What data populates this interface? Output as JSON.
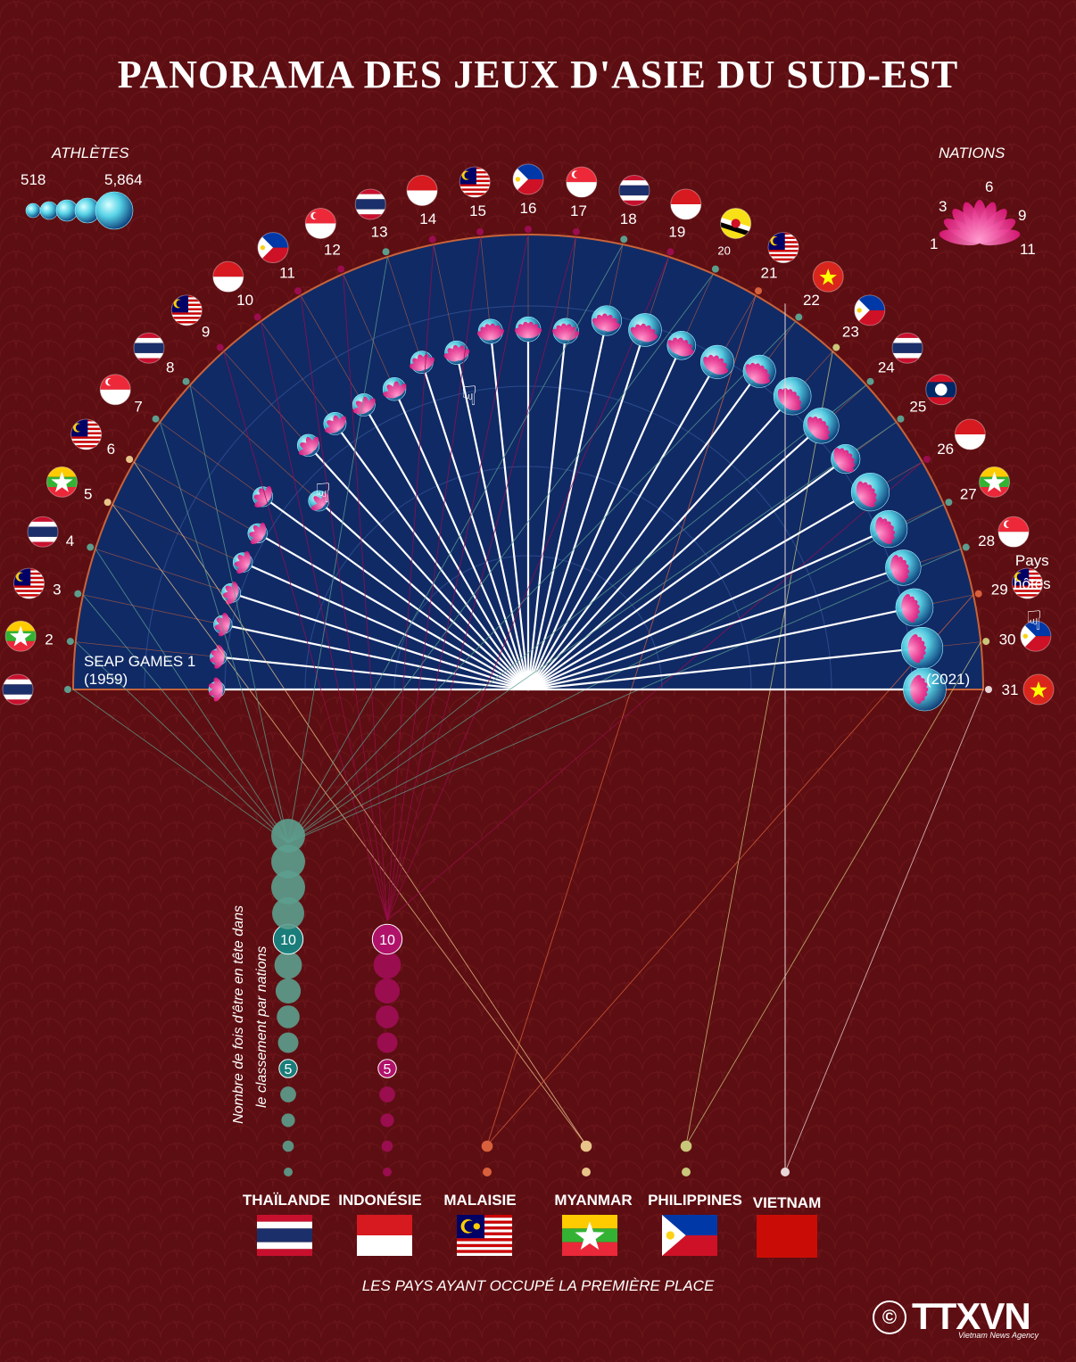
{
  "title": "PANORAMA DES JEUX D'ASIE DU SUD-EST",
  "legend_athletes": {
    "label": "ATHLÈTES",
    "min": "518",
    "max": "5,864"
  },
  "legend_nations": {
    "label": "NATIONS",
    "ticks": [
      "1",
      "3",
      "6",
      "9",
      "11"
    ]
  },
  "first_games_label": "SEAP GAMES 1",
  "first_games_year": "(1959)",
  "last_games_year": "(2021)",
  "hosts_label_1": "Pays",
  "hosts_label_2": "hôtes",
  "vertical_label_1": "Nombre de fois d'être en tête dans",
  "vertical_label_2": "le classement par nations",
  "bottom_caption": "LES PAYS AYANT OCCUPÉ LA PREMIÈRE PLACE",
  "logo": "TTXVN",
  "logo_sub": "Vietnam News Agency",
  "copyright": "©",
  "countries": [
    {
      "key": "THA",
      "name": "THAÏLANDE",
      "color": "#5c9e8e",
      "wins": 14
    },
    {
      "key": "INA",
      "name": "INDONÉSIE",
      "color": "#9a0d4f",
      "wins": 10
    },
    {
      "key": "MAS",
      "name": "MALAISIE",
      "color": "#d9603c",
      "wins": 2
    },
    {
      "key": "MYA",
      "name": "MYANMAR",
      "color": "#e8c48a",
      "wins": 2
    },
    {
      "key": "PHI",
      "name": "PHILIPPINES",
      "color": "#c9c77a",
      "wins": 2
    },
    {
      "key": "VIE",
      "name": "VIETNAM",
      "color": "#e8d6d8",
      "wins": 1
    }
  ],
  "chart_data": {
    "type": "radial",
    "title": "PANORAMA DES JEUX D'ASIE DU SUD-EST",
    "games": [
      {
        "n": 1,
        "host": "THA",
        "athletes": 518,
        "nations": 6,
        "winner": "THA"
      },
      {
        "n": 2,
        "host": "MYA",
        "athletes": 600,
        "nations": 6,
        "winner": "THA"
      },
      {
        "n": 3,
        "host": "MAS",
        "athletes": 1000,
        "nations": 6,
        "winner": "THA"
      },
      {
        "n": 4,
        "host": "THA",
        "athletes": 1100,
        "nations": 6,
        "winner": "THA"
      },
      {
        "n": 5,
        "host": "MYA",
        "athletes": 1200,
        "nations": 6,
        "winner": "MYA"
      },
      {
        "n": 6,
        "host": "MAS",
        "athletes": 1200,
        "nations": 6,
        "winner": "MYA"
      },
      {
        "n": 7,
        "host": "SGP",
        "athletes": 1300,
        "nations": 7,
        "winner": "THA"
      },
      {
        "n": 8,
        "host": "THA",
        "athletes": 1400,
        "nations": 4,
        "winner": "THA"
      },
      {
        "n": 9,
        "host": "MAS",
        "athletes": 1700,
        "nations": 7,
        "winner": "INA"
      },
      {
        "n": 10,
        "host": "INA",
        "athletes": 1800,
        "nations": 7,
        "winner": "INA"
      },
      {
        "n": 11,
        "host": "PHI",
        "athletes": 1800,
        "nations": 7,
        "winner": "INA"
      },
      {
        "n": 12,
        "host": "SGP",
        "athletes": 1900,
        "nations": 7,
        "winner": "INA"
      },
      {
        "n": 13,
        "host": "THA",
        "athletes": 1800,
        "nations": 8,
        "winner": "THA"
      },
      {
        "n": 14,
        "host": "INA",
        "athletes": 2000,
        "nations": 8,
        "winner": "INA"
      },
      {
        "n": 15,
        "host": "MAS",
        "athletes": 2200,
        "nations": 9,
        "winner": "INA"
      },
      {
        "n": 16,
        "host": "PHI",
        "athletes": 2300,
        "nations": 9,
        "winner": "INA"
      },
      {
        "n": 17,
        "host": "SGP",
        "athletes": 2400,
        "nations": 9,
        "winner": "INA"
      },
      {
        "n": 18,
        "host": "THA",
        "athletes": 3300,
        "nations": 10,
        "winner": "THA"
      },
      {
        "n": 19,
        "host": "INA",
        "athletes": 3900,
        "nations": 10,
        "winner": "INA"
      },
      {
        "n": 20,
        "host": "BRU",
        "athletes": 3000,
        "nations": 10,
        "winner": "THA"
      },
      {
        "n": 21,
        "host": "MAS",
        "athletes": 4000,
        "nations": 10,
        "winner": "MAS"
      },
      {
        "n": 22,
        "host": "VIE",
        "athletes": 3800,
        "nations": 11,
        "winner": "THA"
      },
      {
        "n": 23,
        "host": "PHI",
        "athletes": 4800,
        "nations": 11,
        "winner": "PHI"
      },
      {
        "n": 24,
        "host": "THA",
        "athletes": 4400,
        "nations": 11,
        "winner": "THA"
      },
      {
        "n": 25,
        "host": "LAO",
        "athletes": 3100,
        "nations": 11,
        "winner": "THA"
      },
      {
        "n": 26,
        "host": "INA",
        "athletes": 4900,
        "nations": 11,
        "winner": "INA"
      },
      {
        "n": 27,
        "host": "MYA",
        "athletes": 4700,
        "nations": 11,
        "winner": "THA"
      },
      {
        "n": 28,
        "host": "SGP",
        "athletes": 4400,
        "nations": 11,
        "winner": "THA"
      },
      {
        "n": 29,
        "host": "MAS",
        "athletes": 4800,
        "nations": 11,
        "winner": "MAS"
      },
      {
        "n": 30,
        "host": "PHI",
        "athletes": 5600,
        "nations": 11,
        "winner": "PHI"
      },
      {
        "n": 31,
        "host": "VIE",
        "athletes": 5864,
        "nations": 11,
        "winner": "VIE"
      }
    ]
  }
}
